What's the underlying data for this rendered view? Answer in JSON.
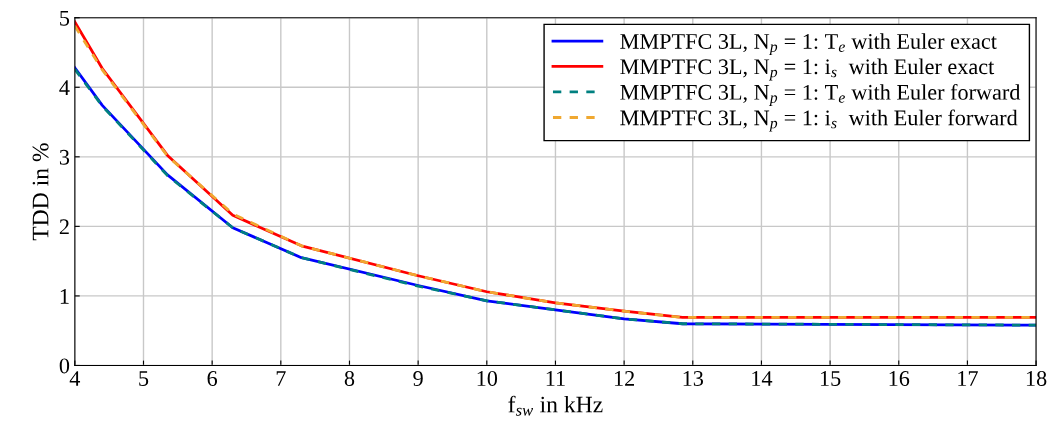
{
  "chart_data": {
    "type": "line",
    "xlabel": "f$_{sw}$ in kHz",
    "ylabel": "TDD in %",
    "x": [
      4,
      4.4,
      5.35,
      6.3,
      7.3,
      9,
      10,
      11,
      12,
      12.85,
      18
    ],
    "series": [
      {
        "name": "MMPTFC 3L, N$_{p}$ = 1: T$_{e}$ with Euler exact",
        "color": "#0000ff",
        "line_style": "solid",
        "values": [
          4.28,
          3.74,
          2.74,
          1.98,
          1.55,
          1.15,
          0.93,
          0.8,
          0.67,
          0.6,
          0.58
        ]
      },
      {
        "name": "MMPTFC 3L, N$_{p}$ = 1: i$_{s}$  with Euler exact",
        "color": "#ff0000",
        "line_style": "solid",
        "values": [
          4.94,
          4.27,
          3.02,
          2.16,
          1.72,
          1.29,
          1.06,
          0.9,
          0.78,
          0.69,
          0.69
        ]
      },
      {
        "name": "MMPTFC 3L, N$_{p}$ = 1: T$_{e}$ with Euler forward",
        "color": "#008080",
        "line_style": "dashed",
        "values": [
          4.26,
          3.73,
          2.73,
          1.98,
          1.55,
          1.14,
          0.93,
          0.8,
          0.67,
          0.6,
          0.58
        ]
      },
      {
        "name": "MMPTFC 3L, N$_{p}$ = 1: i$_{s}$  with Euler forward",
        "color": "#f0a830",
        "line_style": "dashed",
        "values": [
          4.88,
          4.25,
          3.01,
          2.18,
          1.72,
          1.29,
          1.06,
          0.9,
          0.78,
          0.69,
          0.69
        ]
      }
    ],
    "xlim": [
      4,
      18
    ],
    "xticks": [
      4,
      5,
      6,
      7,
      8,
      9,
      10,
      11,
      12,
      13,
      14,
      15,
      16,
      17,
      18
    ],
    "ylim": [
      0,
      5
    ],
    "yticks": [
      0,
      1,
      2,
      3,
      4,
      5
    ],
    "grid": true,
    "legend": "top right",
    "marker": "none"
  }
}
